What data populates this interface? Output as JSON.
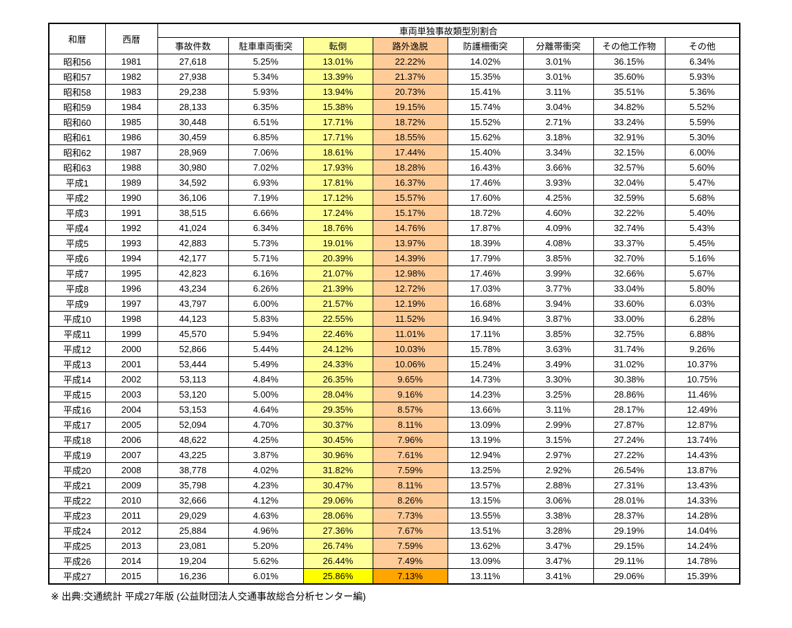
{
  "table": {
    "group_header": "車両単独事故類型別割合",
    "col_headers": [
      "和暦",
      "西暦",
      "事故件数",
      "駐車車両衝突",
      "転倒",
      "路外逸脱",
      "防護柵衝突",
      "分離帯衝突",
      "その他工作物",
      "その他"
    ],
    "rows": [
      [
        "昭和56",
        "1981",
        "27,618",
        "5.25%",
        "13.01%",
        "22.22%",
        "14.02%",
        "3.01%",
        "36.15%",
        "6.34%"
      ],
      [
        "昭和57",
        "1982",
        "27,938",
        "5.34%",
        "13.39%",
        "21.37%",
        "15.35%",
        "3.01%",
        "35.60%",
        "5.93%"
      ],
      [
        "昭和58",
        "1983",
        "29,238",
        "5.93%",
        "13.94%",
        "20.73%",
        "15.41%",
        "3.11%",
        "35.51%",
        "5.36%"
      ],
      [
        "昭和59",
        "1984",
        "28,133",
        "6.35%",
        "15.38%",
        "19.15%",
        "15.74%",
        "3.04%",
        "34.82%",
        "5.52%"
      ],
      [
        "昭和60",
        "1985",
        "30,448",
        "6.51%",
        "17.71%",
        "18.72%",
        "15.52%",
        "2.71%",
        "33.24%",
        "5.59%"
      ],
      [
        "昭和61",
        "1986",
        "30,459",
        "6.85%",
        "17.71%",
        "18.55%",
        "15.62%",
        "3.18%",
        "32.91%",
        "5.30%"
      ],
      [
        "昭和62",
        "1987",
        "28,969",
        "7.06%",
        "18.61%",
        "17.44%",
        "15.40%",
        "3.34%",
        "32.15%",
        "6.00%"
      ],
      [
        "昭和63",
        "1988",
        "30,980",
        "7.02%",
        "17.93%",
        "18.28%",
        "16.43%",
        "3.66%",
        "32.57%",
        "5.60%"
      ],
      [
        "平成1",
        "1989",
        "34,592",
        "6.93%",
        "17.81%",
        "16.37%",
        "17.46%",
        "3.93%",
        "32.04%",
        "5.47%"
      ],
      [
        "平成2",
        "1990",
        "36,106",
        "7.19%",
        "17.12%",
        "15.57%",
        "17.60%",
        "4.25%",
        "32.59%",
        "5.68%"
      ],
      [
        "平成3",
        "1991",
        "38,515",
        "6.66%",
        "17.24%",
        "15.17%",
        "18.72%",
        "4.60%",
        "32.22%",
        "5.40%"
      ],
      [
        "平成4",
        "1992",
        "41,024",
        "6.34%",
        "18.76%",
        "14.76%",
        "17.87%",
        "4.09%",
        "32.74%",
        "5.43%"
      ],
      [
        "平成5",
        "1993",
        "42,883",
        "5.73%",
        "19.01%",
        "13.97%",
        "18.39%",
        "4.08%",
        "33.37%",
        "5.45%"
      ],
      [
        "平成6",
        "1994",
        "42,177",
        "5.71%",
        "20.39%",
        "14.39%",
        "17.79%",
        "3.85%",
        "32.70%",
        "5.16%"
      ],
      [
        "平成7",
        "1995",
        "42,823",
        "6.16%",
        "21.07%",
        "12.98%",
        "17.46%",
        "3.99%",
        "32.66%",
        "5.67%"
      ],
      [
        "平成8",
        "1996",
        "43,234",
        "6.26%",
        "21.39%",
        "12.72%",
        "17.03%",
        "3.77%",
        "33.04%",
        "5.80%"
      ],
      [
        "平成9",
        "1997",
        "43,797",
        "6.00%",
        "21.57%",
        "12.19%",
        "16.68%",
        "3.94%",
        "33.60%",
        "6.03%"
      ],
      [
        "平成10",
        "1998",
        "44,123",
        "5.83%",
        "22.55%",
        "11.52%",
        "16.94%",
        "3.87%",
        "33.00%",
        "6.28%"
      ],
      [
        "平成11",
        "1999",
        "45,570",
        "5.94%",
        "22.46%",
        "11.01%",
        "17.11%",
        "3.85%",
        "32.75%",
        "6.88%"
      ],
      [
        "平成12",
        "2000",
        "52,866",
        "5.44%",
        "24.12%",
        "10.03%",
        "15.78%",
        "3.63%",
        "31.74%",
        "9.26%"
      ],
      [
        "平成13",
        "2001",
        "53,444",
        "5.49%",
        "24.33%",
        "10.06%",
        "15.24%",
        "3.49%",
        "31.02%",
        "10.37%"
      ],
      [
        "平成14",
        "2002",
        "53,113",
        "4.84%",
        "26.35%",
        "9.65%",
        "14.73%",
        "3.30%",
        "30.38%",
        "10.75%"
      ],
      [
        "平成15",
        "2003",
        "53,120",
        "5.00%",
        "28.04%",
        "9.16%",
        "14.23%",
        "3.25%",
        "28.86%",
        "11.46%"
      ],
      [
        "平成16",
        "2004",
        "53,153",
        "4.64%",
        "29.35%",
        "8.57%",
        "13.66%",
        "3.11%",
        "28.17%",
        "12.49%"
      ],
      [
        "平成17",
        "2005",
        "52,094",
        "4.70%",
        "30.37%",
        "8.11%",
        "13.09%",
        "2.99%",
        "27.87%",
        "12.87%"
      ],
      [
        "平成18",
        "2006",
        "48,622",
        "4.25%",
        "30.45%",
        "7.96%",
        "13.19%",
        "3.15%",
        "27.24%",
        "13.74%"
      ],
      [
        "平成19",
        "2007",
        "43,225",
        "3.87%",
        "30.96%",
        "7.61%",
        "12.94%",
        "2.97%",
        "27.22%",
        "14.43%"
      ],
      [
        "平成20",
        "2008",
        "38,778",
        "4.02%",
        "31.82%",
        "7.59%",
        "13.25%",
        "2.92%",
        "26.54%",
        "13.87%"
      ],
      [
        "平成21",
        "2009",
        "35,798",
        "4.23%",
        "30.47%",
        "8.11%",
        "13.57%",
        "2.88%",
        "27.31%",
        "13.43%"
      ],
      [
        "平成22",
        "2010",
        "32,666",
        "4.12%",
        "29.06%",
        "8.26%",
        "13.15%",
        "3.06%",
        "28.01%",
        "14.33%"
      ],
      [
        "平成23",
        "2011",
        "29,029",
        "4.63%",
        "28.06%",
        "7.73%",
        "13.55%",
        "3.38%",
        "28.37%",
        "14.28%"
      ],
      [
        "平成24",
        "2012",
        "25,884",
        "4.96%",
        "27.36%",
        "7.67%",
        "13.51%",
        "3.28%",
        "29.19%",
        "14.04%"
      ],
      [
        "平成25",
        "2013",
        "23,081",
        "5.20%",
        "26.74%",
        "7.59%",
        "13.62%",
        "3.47%",
        "29.15%",
        "14.24%"
      ],
      [
        "平成26",
        "2014",
        "19,204",
        "5.62%",
        "26.44%",
        "7.49%",
        "13.09%",
        "3.47%",
        "29.11%",
        "14.78%"
      ],
      [
        "平成27",
        "2015",
        "16,236",
        "6.01%",
        "25.86%",
        "7.13%",
        "13.11%",
        "3.41%",
        "29.06%",
        "15.39%"
      ]
    ],
    "highlighted_columns": {
      "tento_column_index": 4,
      "rogai_column_index": 5
    }
  },
  "footer": {
    "source_note": "※ 出典:交通統計 平成27年版 (公益財団法人交通事故総合分析センター編)"
  },
  "colors": {
    "highlight_yellow": "#FFFF99",
    "highlight_orange": "#FFCC99",
    "last_row_yellow": "#FFFF00",
    "last_row_orange": "#FFA500",
    "border": "#000000"
  }
}
